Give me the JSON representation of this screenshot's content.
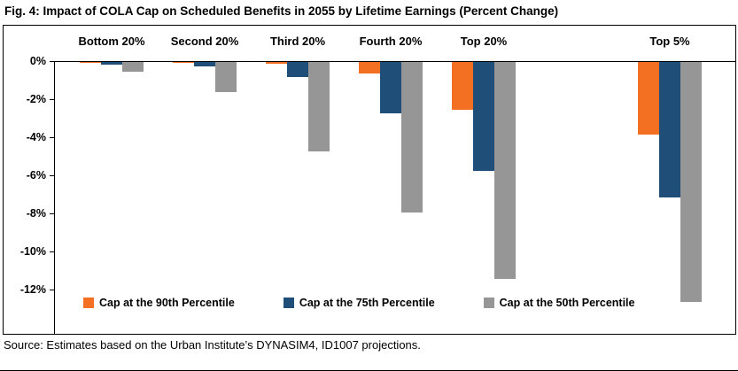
{
  "figure": {
    "title": "Fig. 4: Impact of COLA Cap on Scheduled Benefits in 2055 by Lifetime Earnings (Percent Change)",
    "source": "Source: Estimates based on the Urban Institute’s DYNASIM4, ID1007 projections."
  },
  "chart_data": {
    "type": "bar",
    "title": "Fig. 4: Impact of COLA Cap on Scheduled Benefits in 2055 by Lifetime Earnings (Percent Change)",
    "xlabel": "",
    "ylabel": "",
    "categories": [
      "Bottom 20%",
      "Second 20%",
      "Third 20%",
      "Fourth 20%",
      "Top 20%",
      "Top 5%"
    ],
    "series": [
      {
        "name": "Cap at the 90th Percentile",
        "color": "#F36F21",
        "values": [
          -0.05,
          -0.05,
          -0.1,
          -0.6,
          -2.5,
          -3.8
        ]
      },
      {
        "name": "Cap at the 75th Percentile",
        "color": "#1F4E79",
        "values": [
          -0.15,
          -0.25,
          -0.8,
          -2.7,
          -5.7,
          -7.1
        ]
      },
      {
        "name": "Cap at the 50th Percentile",
        "color": "#969696",
        "values": [
          -0.5,
          -1.6,
          -4.7,
          -7.9,
          -11.4,
          -12.6
        ]
      }
    ],
    "y_ticks": [
      0,
      -2,
      -4,
      -6,
      -8,
      -10,
      -12
    ],
    "y_tick_labels": [
      "0%",
      "-2%",
      "-4%",
      "-6%",
      "-8%",
      "-10%",
      "-12%"
    ],
    "ylim": [
      -14.3,
      0
    ],
    "grid": false,
    "legend_position": "bottom-inside",
    "value_unit": "percent"
  }
}
